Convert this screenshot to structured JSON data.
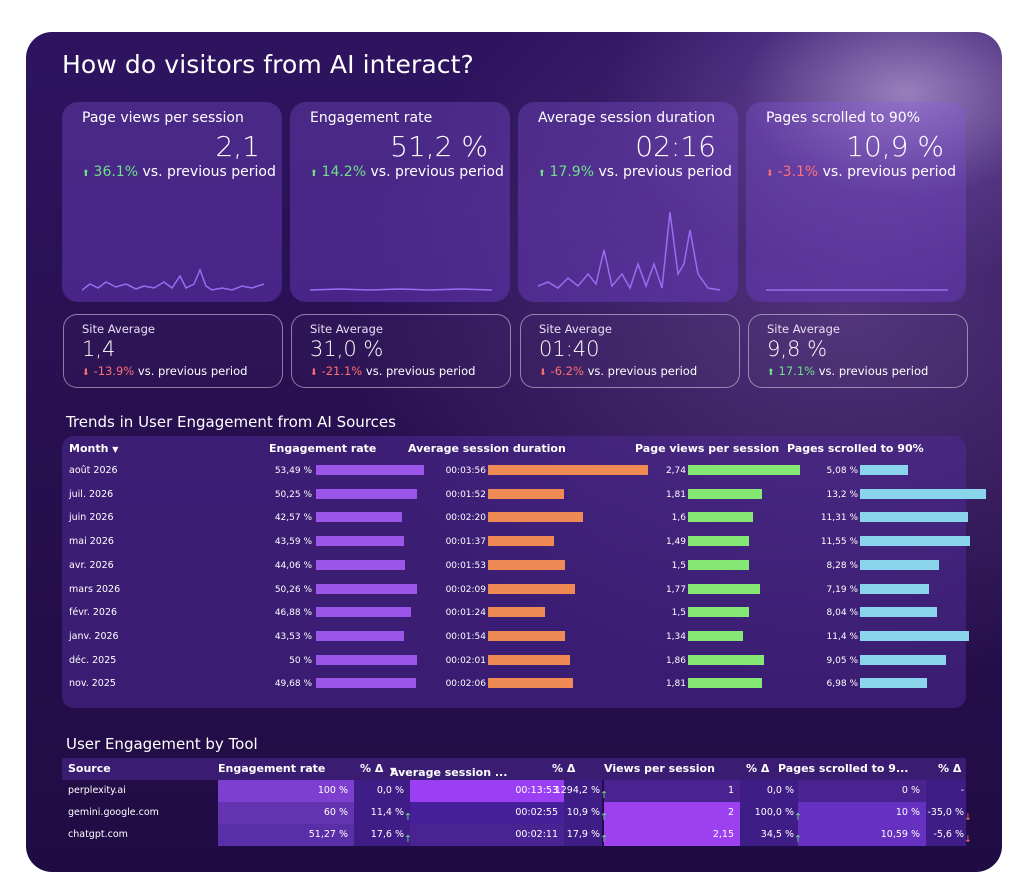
{
  "title": "How do visitors from AI interact?",
  "kpis": [
    {
      "label": "Page views per session",
      "value": "2,1",
      "change": "36.1%",
      "direction": "up",
      "suffix": "vs. previous period"
    },
    {
      "label": "Engagement rate",
      "value": "51,2 %",
      "change": "14.2%",
      "direction": "up",
      "suffix": "vs. previous period"
    },
    {
      "label": "Average session duration",
      "value": "02:16",
      "change": "17.9%",
      "direction": "up",
      "suffix": "vs. previous period"
    },
    {
      "label": "Pages scrolled to 90%",
      "value": "10,9 %",
      "change": "-3.1%",
      "direction": "down",
      "suffix": "vs. previous period"
    }
  ],
  "site_averages": [
    {
      "label": "Site Average",
      "value": "1,4",
      "change": "-13.9%",
      "direction": "down",
      "suffix": "vs. previous period"
    },
    {
      "label": "Site Average",
      "value": "31,0 %",
      "change": "-21.1%",
      "direction": "down",
      "suffix": "vs. previous period"
    },
    {
      "label": "Site Average",
      "value": "01:40",
      "change": "-6.2%",
      "direction": "down",
      "suffix": "vs. previous period"
    },
    {
      "label": "Site Average",
      "value": "9,8 %",
      "change": "17.1%",
      "direction": "up",
      "suffix": "vs. previous period"
    }
  ],
  "trends": {
    "title": "Trends in User Engagement from AI Sources",
    "headers": {
      "month": "Month",
      "eng": "Engagement rate",
      "dur": "Average session duration",
      "pv": "Page views per session",
      "ps": "Pages scrolled to 90%"
    },
    "rows": [
      {
        "month": "août 2026",
        "eng": "53,49 %",
        "dur": "00:03:56",
        "pv": "2,74",
        "ps": "5,08 %"
      },
      {
        "month": "juil. 2026",
        "eng": "50,25 %",
        "dur": "00:01:52",
        "pv": "1,81",
        "ps": "13,2 %"
      },
      {
        "month": "juin 2026",
        "eng": "42,57 %",
        "dur": "00:02:20",
        "pv": "1,6",
        "ps": "11,31 %"
      },
      {
        "month": "mai 2026",
        "eng": "43,59 %",
        "dur": "00:01:37",
        "pv": "1,49",
        "ps": "11,55 %"
      },
      {
        "month": "avr. 2026",
        "eng": "44,06 %",
        "dur": "00:01:53",
        "pv": "1,5",
        "ps": "8,28 %"
      },
      {
        "month": "mars 2026",
        "eng": "50,26 %",
        "dur": "00:02:09",
        "pv": "1,77",
        "ps": "7,19 %"
      },
      {
        "month": "févr. 2026",
        "eng": "46,88 %",
        "dur": "00:01:24",
        "pv": "1,5",
        "ps": "8,04 %"
      },
      {
        "month": "janv. 2026",
        "eng": "43,53 %",
        "dur": "00:01:54",
        "pv": "1,34",
        "ps": "11,4 %"
      },
      {
        "month": "déc. 2025",
        "eng": "50 %",
        "dur": "00:02:01",
        "pv": "1,86",
        "ps": "9,05 %"
      },
      {
        "month": "nov. 2025",
        "eng": "49,68 %",
        "dur": "00:02:06",
        "pv": "1,81",
        "ps": "6,98 %"
      }
    ]
  },
  "tools": {
    "title": "User Engagement by Tool",
    "headers": {
      "source": "Source",
      "eng": "Engagement rate",
      "eng_delta": "% Δ",
      "dur": "Average session ...",
      "dur_delta": "% Δ",
      "pv": "Views per session",
      "pv_delta": "% Δ",
      "ps": "Pages scrolled to 9...",
      "ps_delta": "% Δ"
    },
    "rows": [
      {
        "source": "perplexity.ai",
        "eng": "100 %",
        "eng_delta": "0,0 %",
        "dur": "00:13:53",
        "dur_delta": "1294,2 % ↑",
        "pv": "1",
        "pv_delta": "0,0 %",
        "ps": "0 %",
        "ps_delta": "-"
      },
      {
        "source": "gemini.google.com",
        "eng": "60 %",
        "eng_delta": "11,4 % ↑",
        "dur": "00:02:55",
        "dur_delta": "10,9 % ↑",
        "pv": "2",
        "pv_delta": "100,0 % ↑",
        "ps": "10 %",
        "ps_delta": "-35,0 % ↓"
      },
      {
        "source": "chatgpt.com",
        "eng": "51,27 %",
        "eng_delta": "17,6 % ↑",
        "dur": "00:02:11",
        "dur_delta": "17,9 % ↑",
        "pv": "2,15",
        "pv_delta": "34,5 % ↑",
        "ps": "10,59 %",
        "ps_delta": "-5,6 % ↓"
      }
    ]
  },
  "colors": {
    "engagement": "#9b55e8",
    "duration": "#ef8a55",
    "pageviews": "#85e874",
    "scrolled": "#8ad4ec",
    "up": "#6fe08a",
    "down": "#ff6f6f"
  }
}
